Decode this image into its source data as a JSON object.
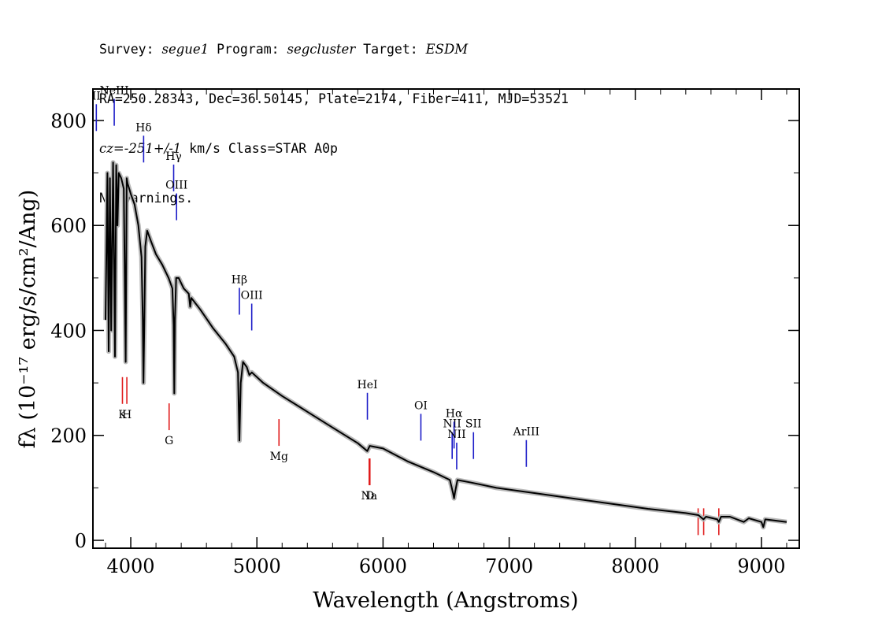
{
  "header": {
    "survey_label": "Survey: ",
    "survey": "segue1",
    "program_label": " Program: ",
    "program": "segcluster",
    "target_label": " Target: ",
    "target": "ESDM",
    "line2": "RA=250.28343, Dec=36.50145, Plate=2174, Fiber=411, MJD=53521",
    "cz": "cz=-251+/-1",
    "line3_rest": " km/s Class=STAR A0p",
    "line4": "No warnings."
  },
  "chart_data": {
    "type": "line",
    "xlabel": "Wavelength (Angstroms)",
    "ylabel": "fλ (10⁻¹⁷ erg/s/cm²/Ang)",
    "xlim": [
      3700,
      9300
    ],
    "ylim": [
      -15,
      860
    ],
    "x_ticks": [
      4000,
      5000,
      6000,
      7000,
      8000,
      9000
    ],
    "y_ticks": [
      0,
      200,
      400,
      600,
      800
    ],
    "grid": false,
    "series": [
      {
        "x": [
          3800,
          3815,
          3825,
          3835,
          3845,
          3860,
          3875,
          3885,
          3895,
          3905,
          3925,
          3945,
          3960,
          3968,
          3975,
          3985,
          4000,
          4030,
          4060,
          4085,
          4095,
          4101,
          4108,
          4115,
          4130,
          4160,
          4200,
          4250,
          4300,
          4330,
          4340,
          4345,
          4350,
          4360,
          4380,
          4420,
          4460,
          4471,
          4480,
          4550,
          4650,
          4750,
          4820,
          4850,
          4861,
          4872,
          4890,
          4920,
          4940,
          4960,
          5050,
          5200,
          5400,
          5600,
          5800,
          5875,
          5895,
          6000,
          6200,
          6400,
          6530,
          6555,
          6563,
          6571,
          6590,
          6700,
          6900,
          7200,
          7500,
          7800,
          8100,
          8400,
          8500,
          8540,
          8560,
          8650,
          8662,
          8680,
          8750,
          8860,
          8900,
          9000,
          9015,
          9030,
          9100,
          9200
        ],
        "y": [
          420,
          700,
          360,
          690,
          400,
          720,
          350,
          715,
          600,
          700,
          690,
          670,
          340,
          690,
          680,
          672,
          660,
          640,
          600,
          540,
          420,
          300,
          430,
          560,
          590,
          570,
          545,
          525,
          500,
          480,
          410,
          280,
          420,
          500,
          500,
          480,
          470,
          445,
          462,
          440,
          405,
          375,
          350,
          320,
          190,
          300,
          340,
          330,
          315,
          320,
          300,
          275,
          245,
          215,
          185,
          170,
          180,
          175,
          150,
          130,
          115,
          90,
          80,
          92,
          115,
          110,
          100,
          90,
          80,
          70,
          60,
          52,
          48,
          40,
          45,
          40,
          35,
          45,
          45,
          35,
          42,
          35,
          25,
          40,
          38,
          35
        ]
      }
    ],
    "emission_lines": [
      {
        "label": "II",
        "x": 3727,
        "y": 780
      },
      {
        "label": "NeIII",
        "x": 3869,
        "y": 790
      },
      {
        "label": "Hδ",
        "x": 4102,
        "y": 720
      },
      {
        "label": "Hγ",
        "x": 4340,
        "y": 665
      },
      {
        "label": "OIII",
        "x": 4363,
        "y": 610
      },
      {
        "label": "Hβ",
        "x": 4861,
        "y": 430
      },
      {
        "label": "OIII",
        "x": 4959,
        "y": 400
      },
      {
        "label": "HeI",
        "x": 5876,
        "y": 230
      },
      {
        "label": "OI",
        "x": 6300,
        "y": 190
      },
      {
        "label": "NII",
        "x": 6548,
        "y": 155
      },
      {
        "label": "Hα",
        "x": 6563,
        "y": 175
      },
      {
        "label": "NII",
        "x": 6584,
        "y": 135
      },
      {
        "label": "SII",
        "x": 6717,
        "y": 155
      },
      {
        "label": "ArIII",
        "x": 7136,
        "y": 140
      }
    ],
    "absorption_lines": [
      {
        "label": "K",
        "x": 3934,
        "y": 260
      },
      {
        "label": "H",
        "x": 3969,
        "y": 260
      },
      {
        "label": "G",
        "x": 4304,
        "y": 210
      },
      {
        "label": "Mg",
        "x": 5175,
        "y": 180
      },
      {
        "label": "Na",
        "x": 5890,
        "y": 105
      },
      {
        "label": "D",
        "x": 5896,
        "y": 105
      },
      {
        "label": "",
        "x": 8498,
        "y": 10
      },
      {
        "label": "",
        "x": 8542,
        "y": 10
      },
      {
        "label": "",
        "x": 8662,
        "y": 10
      }
    ],
    "colors": {
      "spectrum": "#000000",
      "error_band": "#b8b8b8",
      "emission": "#1c1cc8",
      "absorption": "#e01c1c"
    }
  }
}
